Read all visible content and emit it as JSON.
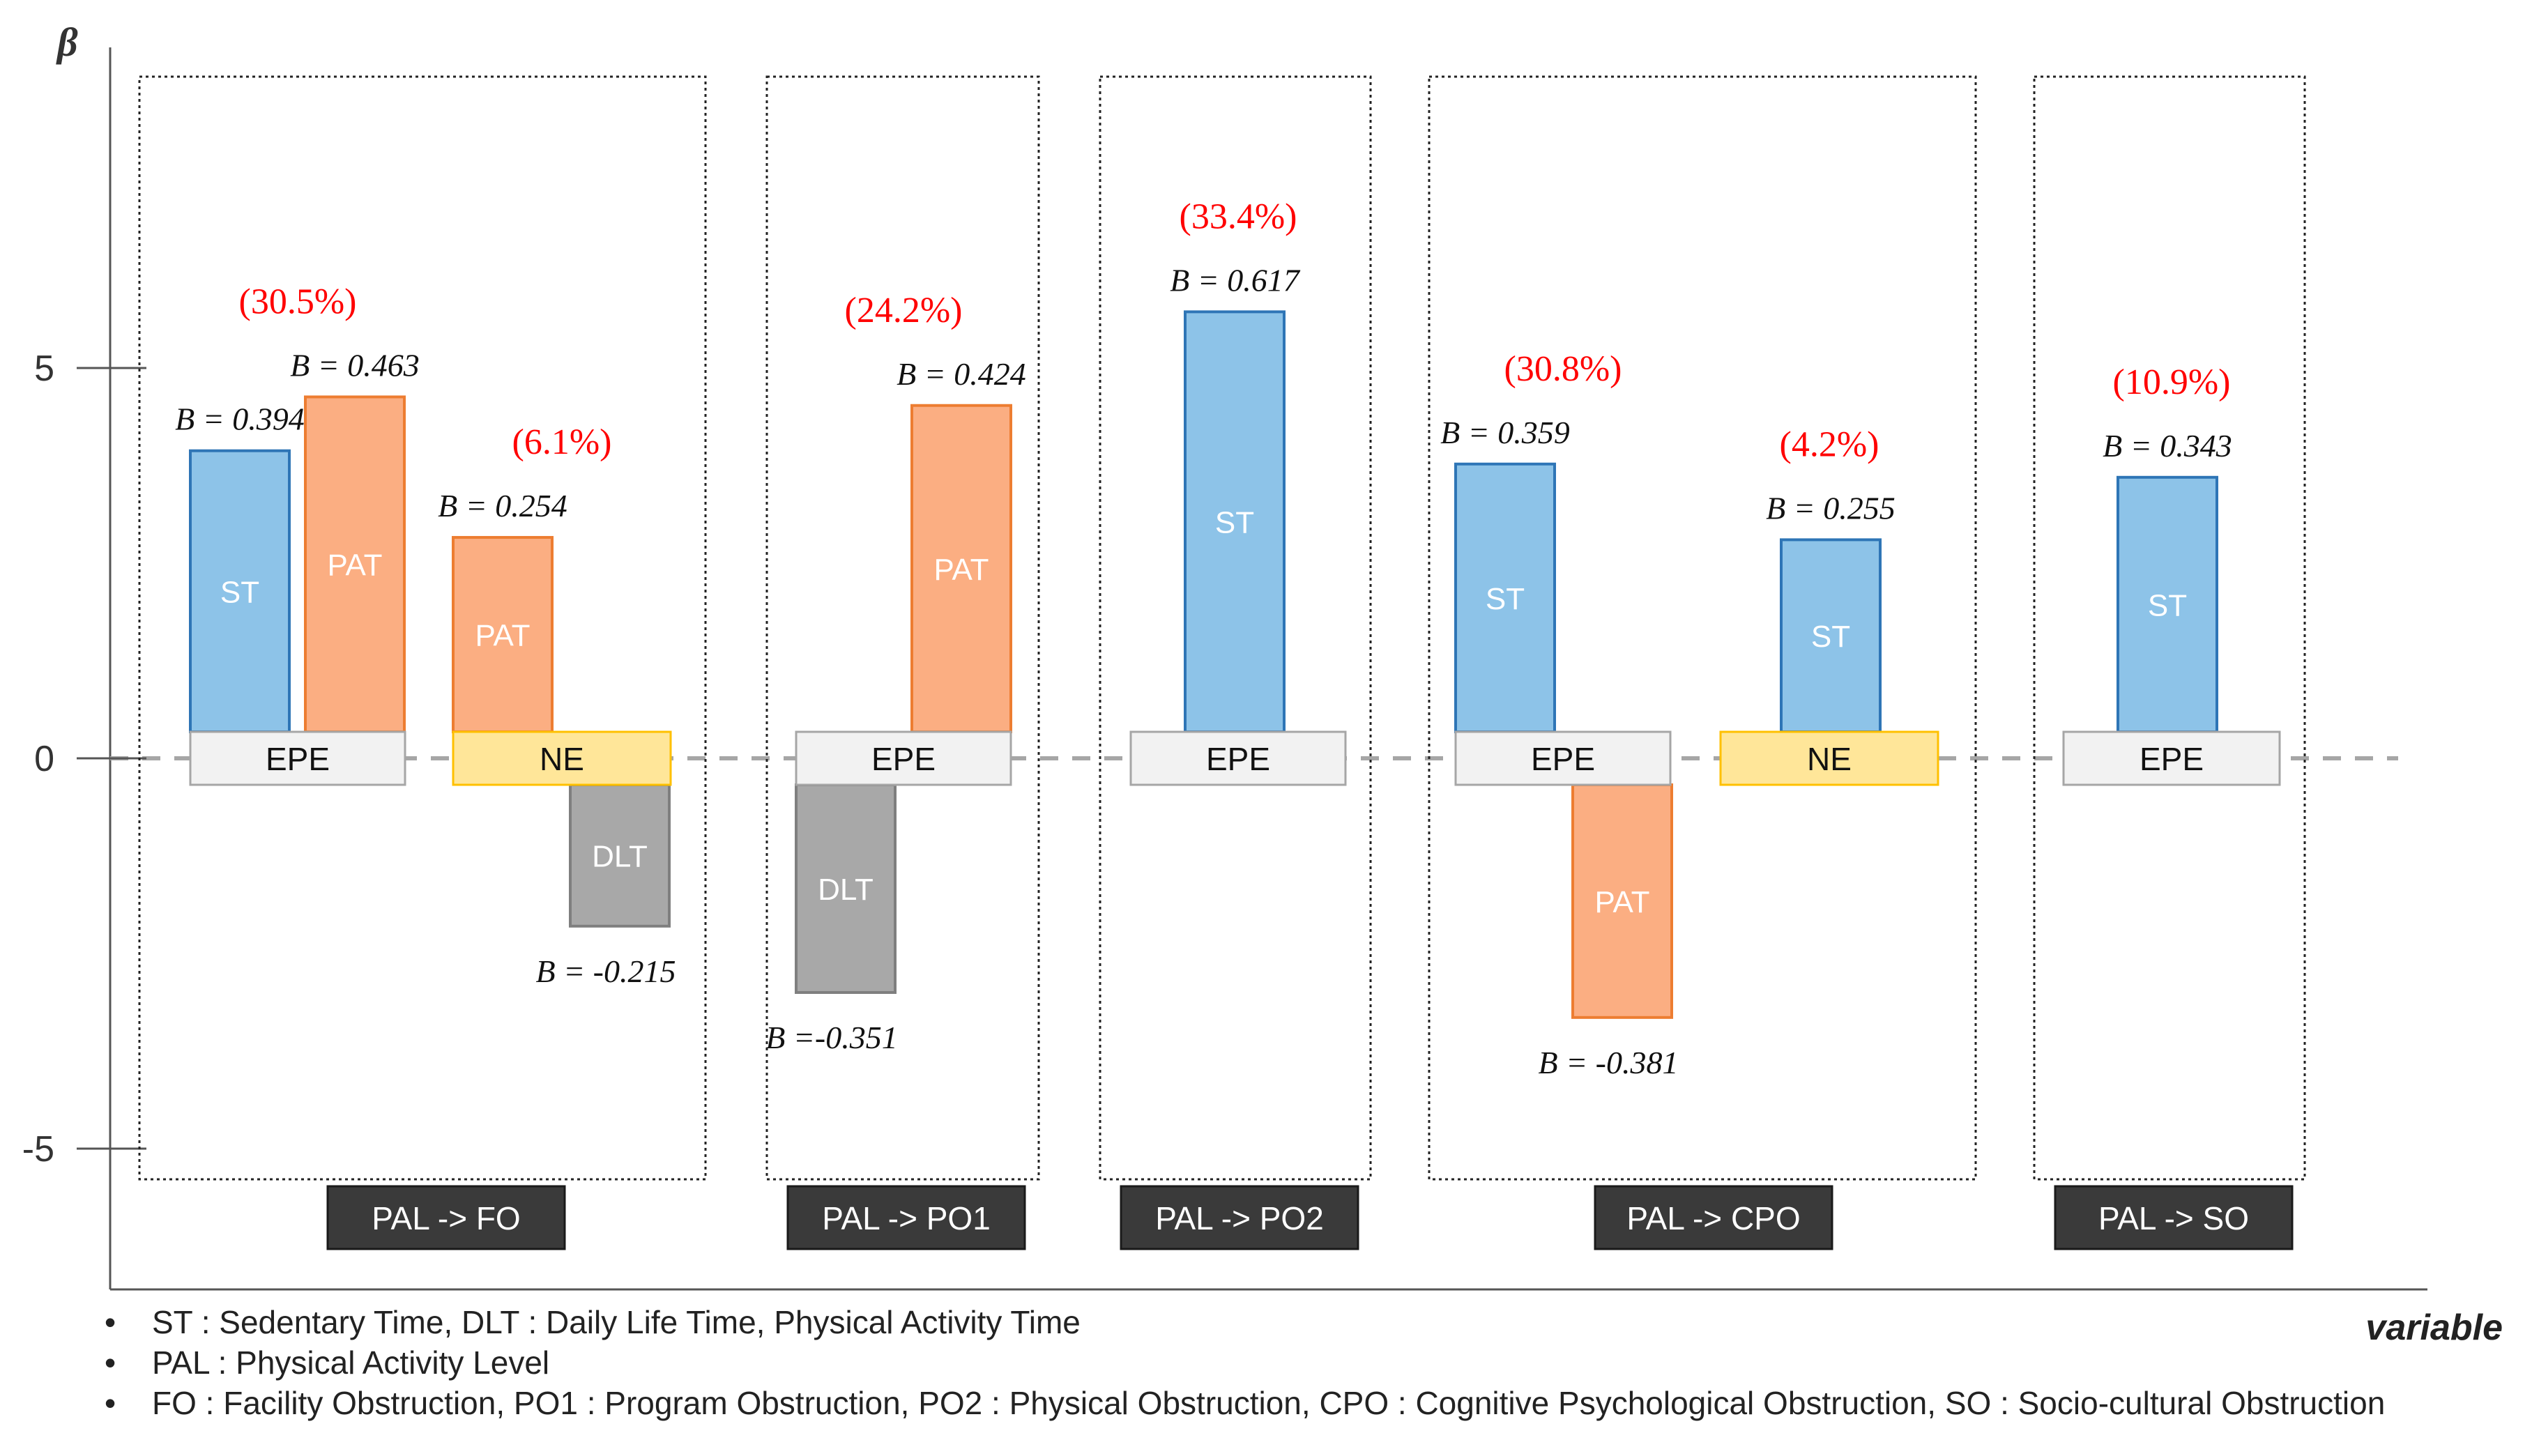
{
  "chart_data": {
    "type": "bar",
    "ylabel": "β",
    "xlabel": "variable",
    "ylim": [
      -6.0,
      7.5
    ],
    "yticks": [
      5,
      0,
      -5
    ],
    "ytick_labels": [
      "5",
      "0",
      "-5"
    ],
    "grid": false,
    "colors": {
      "ST": "#8DC3E8",
      "PAT": "#FBAE82",
      "DLT": "#A8A8A8",
      "EPE": "#F2F2F2",
      "NE": "#FFE699",
      "percent_label": "#FF0000",
      "panel_label_bg": "#3A3A3A"
    },
    "panels": [
      {
        "label": "PAL -> FO",
        "groups": [
          {
            "mediator": "EPE",
            "percent": "(30.5%)",
            "bars": [
              {
                "name": "ST",
                "value": 3.94,
                "b_label": "B = 0.394"
              },
              {
                "name": "PAT",
                "value": 4.63,
                "b_label": "B = 0.463"
              }
            ]
          },
          {
            "mediator": "NE",
            "percent": "(6.1%)",
            "bars": [
              {
                "name": "PAT",
                "value": 2.83,
                "b_label": "B = 0.254"
              },
              {
                "name": "DLT",
                "value": -2.15,
                "b_label": "B = -0.215"
              }
            ]
          }
        ]
      },
      {
        "label": "PAL -> PO1",
        "groups": [
          {
            "mediator": "EPE",
            "percent": "(24.2%)",
            "bars": [
              {
                "name": "DLT",
                "value": -3.0,
                "b_label": "B =-0.351"
              },
              {
                "name": "PAT",
                "value": 4.52,
                "b_label": "B = 0.424"
              }
            ]
          }
        ]
      },
      {
        "label": "PAL -> PO2",
        "groups": [
          {
            "mediator": "EPE",
            "percent": "(33.4%)",
            "bars": [
              {
                "name": "ST",
                "value": 5.72,
                "b_label": "B = 0.617"
              }
            ]
          }
        ]
      },
      {
        "label": "PAL -> CPO",
        "groups": [
          {
            "mediator": "EPE",
            "percent": "(30.8%)",
            "bars": [
              {
                "name": "ST",
                "value": 3.77,
                "b_label": "B = 0.359"
              },
              {
                "name": "PAT",
                "value": -3.32,
                "b_label": "B = -0.381"
              }
            ]
          },
          {
            "mediator": "NE",
            "percent": "(4.2%)",
            "bars": [
              {
                "name": "ST",
                "value": 2.8,
                "b_label": "B = 0.255"
              }
            ]
          }
        ]
      },
      {
        "label": "PAL -> SO",
        "groups": [
          {
            "mediator": "EPE",
            "percent": "(10.9%)",
            "bars": [
              {
                "name": "ST",
                "value": 3.6,
                "b_label": "B = 0.343"
              }
            ]
          }
        ]
      }
    ]
  },
  "notes": [
    "ST : Sedentary Time, DLT : Daily Life Time, Physical Activity Time",
    "PAL : Physical Activity Level",
    "FO : Facility Obstruction, PO1 : Program Obstruction, PO2 : Physical Obstruction, CPO : Cognitive Psychological Obstruction, SO :  Socio-cultural Obstruction"
  ],
  "bullet": "•"
}
